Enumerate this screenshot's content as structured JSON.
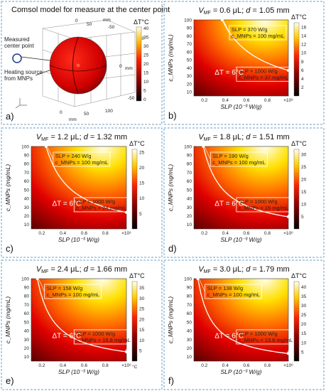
{
  "panel_a": {
    "title": "Comsol model for measure at the center point",
    "measured_label_1": "Measured",
    "measured_label_2": "center point",
    "heating_label_1": "Heating source",
    "heating_label_2": "from MNPs",
    "axis_unit": "mm",
    "tick_labels": [
      "50",
      "0",
      "-50",
      "50",
      "0",
      "-50",
      "100",
      "50",
      "0"
    ],
    "colorbar_title": "ΔT°C",
    "colorbar_ticks": [
      "40",
      "35",
      "30",
      "25",
      "20",
      "15",
      "10",
      "5",
      "0"
    ],
    "label": "a)"
  },
  "chart_data": [
    {
      "type": "heatmap",
      "label": "b)",
      "vmf": "0.6 μL",
      "d": "1.05 mm",
      "xlabel": "SLP (10⁻³ W/g)",
      "ylabel": "c_MNPs (mg/mL)",
      "xticks": [
        "0.2",
        "0.4",
        "0.6",
        "0.8",
        "×10⁶"
      ],
      "yticks": [
        10,
        20,
        30,
        40,
        50,
        60,
        70,
        80,
        90,
        100
      ],
      "colorbar_title": "ΔT°C",
      "colorbar_ticks": [
        2,
        4,
        6,
        8,
        10,
        12,
        14,
        16
      ],
      "colorbar_max": 17,
      "annotation_top": [
        "SLP = 370 W/g",
        "c_MNPs = 100 mg/mL"
      ],
      "annotation_bottom": [
        "SLP = 1000 W/g",
        "c_MNPs = 37 mg/mL"
      ],
      "contour_label": "ΔT = 6°C",
      "contour": {
        "slp_top": 370,
        "c_top": 100,
        "slp_bottom": 1000,
        "c_bottom": 37
      }
    },
    {
      "type": "heatmap",
      "label": "c)",
      "vmf": "1.2 μL",
      "d": "1.32 mm",
      "xlabel": "SLP (10⁻³ W/g)",
      "ylabel": "c_MNPs (mg/mL)",
      "xticks": [
        "0.2",
        "0.4",
        "0.6",
        "0.8",
        "×10⁶"
      ],
      "yticks": [
        10,
        20,
        30,
        40,
        50,
        60,
        70,
        80,
        90,
        100
      ],
      "colorbar_title": "ΔT°C",
      "colorbar_ticks": [
        5,
        10,
        15,
        20,
        25
      ],
      "colorbar_max": 26,
      "annotation_top": [
        "SLP = 240 W/g",
        "c_MNPs = 100 mg/mL"
      ],
      "annotation_bottom": [
        "SLP = 1000 W/g",
        "c_MNPs = 24 mg/mL"
      ],
      "contour_label": "ΔT = 6°C",
      "contour": {
        "slp_top": 240,
        "c_top": 100,
        "slp_bottom": 1000,
        "c_bottom": 24
      }
    },
    {
      "type": "heatmap",
      "label": "d)",
      "vmf": "1.8 μL",
      "d": "1.51 mm",
      "xlabel": "SLP (10⁻³ W/g)",
      "ylabel": "c_MNPs (mg/mL)",
      "xticks": [
        "0.2",
        "0.4",
        "0.6",
        "0.8",
        "×10⁶"
      ],
      "yticks": [
        10,
        20,
        30,
        40,
        50,
        60,
        70,
        80,
        90,
        100
      ],
      "colorbar_title": "ΔT°C",
      "colorbar_ticks": [
        5,
        10,
        15,
        20,
        25,
        30
      ],
      "colorbar_max": 32,
      "annotation_top": [
        "SLP = 190 W/g",
        "c_MNPs = 100 mg/mL"
      ],
      "annotation_bottom": [
        "SLP = 1000 W/g",
        "c_MNPs = 19 mg/mL"
      ],
      "contour_label": "ΔT = 6°C",
      "contour": {
        "slp_top": 190,
        "c_top": 100,
        "slp_bottom": 1000,
        "c_bottom": 19
      }
    },
    {
      "type": "heatmap",
      "label": "e)",
      "vmf": "2.4 μL",
      "d": "1.66 mm",
      "xlabel": "SLP (10⁻³ W/g)",
      "ylabel": "c_MNPs (mg/mL)",
      "xticks": [
        "0.2",
        "0.4",
        "0.6",
        "0.8",
        "×10⁶"
      ],
      "yticks": [
        10,
        20,
        30,
        40,
        50,
        60,
        70,
        80,
        90,
        100
      ],
      "colorbar_title": "ΔT°C",
      "colorbar_ticks": [
        5,
        10,
        15,
        20,
        25,
        30,
        35
      ],
      "colorbar_max": 38,
      "colorbar_unit": "°C",
      "annotation_top": [
        "SLP = 158 W/g",
        "c_MNPs = 100 mg/mL"
      ],
      "annotation_bottom": [
        "SLP = 1000 W/g",
        "c_MNPs = 15.8 mg/mL"
      ],
      "contour_label": "ΔT = 6°C",
      "contour": {
        "slp_top": 158,
        "c_top": 100,
        "slp_bottom": 1000,
        "c_bottom": 15.8
      }
    },
    {
      "type": "heatmap",
      "label": "f)",
      "vmf": "3.0 μL",
      "d": "1.79 mm",
      "xlabel": "SLP (10⁻³ W/g)",
      "ylabel": "c_MNPs (mg/mL)",
      "xticks": [
        "0.2",
        "0.4",
        "0.6",
        "0.8",
        "×10⁶"
      ],
      "yticks": [
        10,
        20,
        30,
        40,
        50,
        60,
        70,
        80,
        90,
        100
      ],
      "colorbar_title": "ΔT°C",
      "colorbar_ticks": [
        5,
        10,
        15,
        20,
        25,
        30,
        35,
        40
      ],
      "colorbar_max": 43,
      "annotation_top": [
        "SLP = 138 W/g",
        "c_MNPs = 100 mg/mL"
      ],
      "annotation_bottom": [
        "SLP = 1000 W/g",
        "c_MNPs = 13.8 mg/mL"
      ],
      "contour_label": "ΔT = 6°C",
      "contour": {
        "slp_top": 138,
        "c_top": 100,
        "slp_bottom": 1000,
        "c_bottom": 13.8
      }
    }
  ]
}
